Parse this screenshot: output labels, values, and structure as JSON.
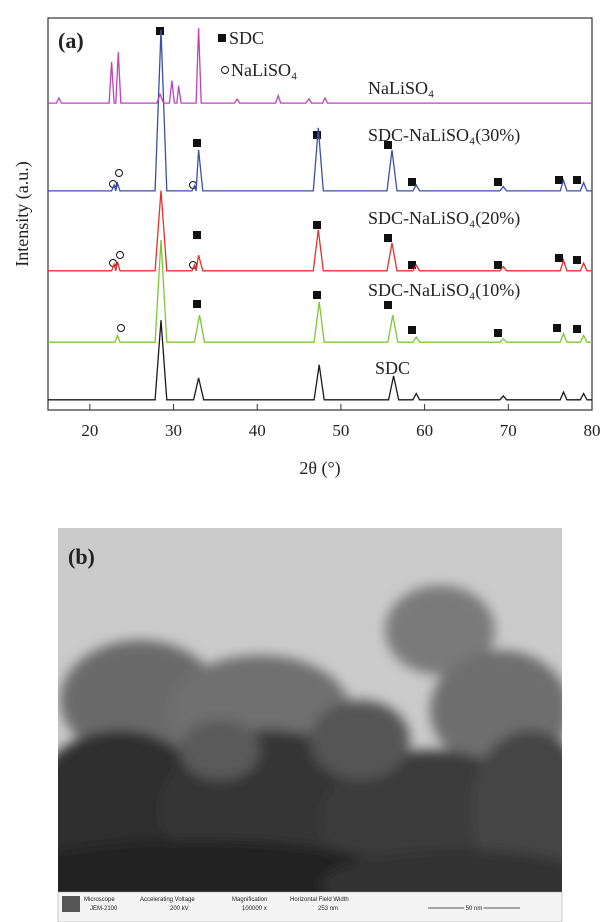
{
  "chart_data": {
    "type": "line",
    "panel_label": "(a)",
    "xlabel": "2θ (°)",
    "ylabel": "Intensity (a.u.)",
    "xlim": [
      15,
      80
    ],
    "xticks": [
      20,
      30,
      40,
      50,
      60,
      70,
      80
    ],
    "ylim": [
      0,
      100
    ],
    "legend_markers": [
      "SDC",
      "NaLiSO₄"
    ],
    "series": [
      {
        "name": "SDC",
        "color": "#1a1a1a",
        "x": [
          15,
          27.8,
          28.5,
          29.2,
          32.4,
          33.0,
          33.6,
          46.8,
          47.4,
          48.0,
          55.7,
          56.3,
          56.9,
          58.6,
          59.0,
          59.4,
          69.0,
          69.4,
          69.8,
          76.2,
          76.6,
          77.0,
          78.6,
          79.0,
          79.4,
          80
        ],
        "values": [
          2.6,
          2.6,
          22.9,
          2.6,
          2.6,
          8.2,
          2.6,
          2.6,
          11.5,
          2.6,
          2.6,
          8.7,
          2.6,
          2.6,
          4.2,
          2.6,
          2.6,
          3.6,
          2.6,
          2.6,
          4.6,
          2.6,
          2.6,
          4.2,
          2.6,
          2.6
        ]
      },
      {
        "name": "SDC-NaLiSO₄(10%)",
        "color": "#7dc832",
        "x": [
          15,
          23.0,
          23.3,
          23.6,
          27.8,
          28.5,
          29.2,
          32.5,
          33.1,
          33.7,
          46.8,
          47.4,
          48.0,
          55.6,
          56.2,
          56.8,
          58.6,
          59.0,
          59.4,
          69.0,
          69.4,
          69.8,
          76.2,
          76.6,
          77.0,
          78.6,
          79.0,
          79.4,
          80
        ],
        "values": [
          17.3,
          17.3,
          19.0,
          17.3,
          17.3,
          43.4,
          17.3,
          17.3,
          24.2,
          17.3,
          17.3,
          27.6,
          17.3,
          17.3,
          24.2,
          17.3,
          17.3,
          18.6,
          17.3,
          17.3,
          18.2,
          17.3,
          17.3,
          19.5,
          17.3,
          17.3,
          19.0,
          17.3,
          17.3
        ]
      },
      {
        "name": "SDC-NaLiSO₄(20%)",
        "color": "#e8302a",
        "x": [
          15,
          22.6,
          22.9,
          23.1,
          23.3,
          23.6,
          27.8,
          28.5,
          29.2,
          32.2,
          32.5,
          32.7,
          33.0,
          33.5,
          46.7,
          47.3,
          47.9,
          55.5,
          56.1,
          56.7,
          58.6,
          59.0,
          59.4,
          69.0,
          69.4,
          69.8,
          76.2,
          76.6,
          77.0,
          78.6,
          79.0,
          79.4,
          80
        ],
        "values": [
          35.5,
          35.5,
          37.2,
          35.5,
          37.8,
          35.5,
          35.5,
          56,
          35.5,
          35.5,
          37.0,
          35.5,
          39.5,
          35.5,
          35.5,
          46,
          35.5,
          35.5,
          42.6,
          35.5,
          35.5,
          37.0,
          35.5,
          35.5,
          36.6,
          35.5,
          35.5,
          38.2,
          35.5,
          35.5,
          37.5,
          35.5,
          35.5
        ]
      },
      {
        "name": "SDC-NaLiSO₄(30%)",
        "color": "#3a4fa8",
        "x": [
          15,
          22.6,
          22.9,
          23.1,
          23.3,
          23.6,
          27.8,
          28.5,
          29.2,
          32.2,
          32.5,
          32.7,
          33.0,
          33.5,
          46.7,
          47.3,
          47.9,
          55.5,
          56.1,
          56.7,
          58.6,
          59.0,
          59.4,
          69.0,
          69.4,
          69.8,
          76.2,
          76.6,
          77.0,
          78.6,
          79.0,
          79.4,
          80
        ],
        "values": [
          55.9,
          55.9,
          57.4,
          55.9,
          57.8,
          55.9,
          55.9,
          97,
          55.9,
          55.9,
          57.2,
          55.9,
          66.3,
          55.9,
          55.9,
          72,
          55.9,
          55.9,
          66.3,
          55.9,
          55.9,
          57.4,
          55.9,
          55.9,
          57.0,
          55.9,
          55.9,
          58.6,
          55.9,
          55.9,
          58.0,
          55.9,
          55.9
        ]
      },
      {
        "name": "NaLiSO₄",
        "color": "#c040c0",
        "x": [
          15,
          16.0,
          16.3,
          16.6,
          22.3,
          22.6,
          22.9,
          23.1,
          23.4,
          23.7,
          28.0,
          28.4,
          28.8,
          29.5,
          29.8,
          30.1,
          30.4,
          30.6,
          30.9,
          32.7,
          33.0,
          33.3,
          37.3,
          37.6,
          37.9,
          42.2,
          42.5,
          42.8,
          45.8,
          46.2,
          46.5,
          47.8,
          48.1,
          48.4,
          80
        ],
        "values": [
          78.3,
          78.3,
          79.6,
          78.3,
          78.3,
          88.8,
          78.3,
          78.3,
          91.3,
          78.3,
          78.3,
          80.5,
          78.3,
          78.3,
          84,
          78.3,
          78.3,
          82.7,
          78.3,
          78.3,
          97.4,
          78.3,
          78.3,
          79.3,
          78.3,
          78.3,
          80.2,
          78.3,
          78.3,
          79.4,
          78.3,
          78.3,
          79.6,
          78.3,
          78.3
        ]
      }
    ]
  },
  "image": {
    "panel_label": "(b)",
    "info_bar": {
      "headers": [
        "Microscope",
        "Accelerating Voltage",
        "Magnification",
        "Horizontal Field Width"
      ],
      "values": [
        "JEM-2100",
        "200 kV",
        "100000 x",
        "253 nm"
      ],
      "scale_bar": "50 nm"
    }
  }
}
